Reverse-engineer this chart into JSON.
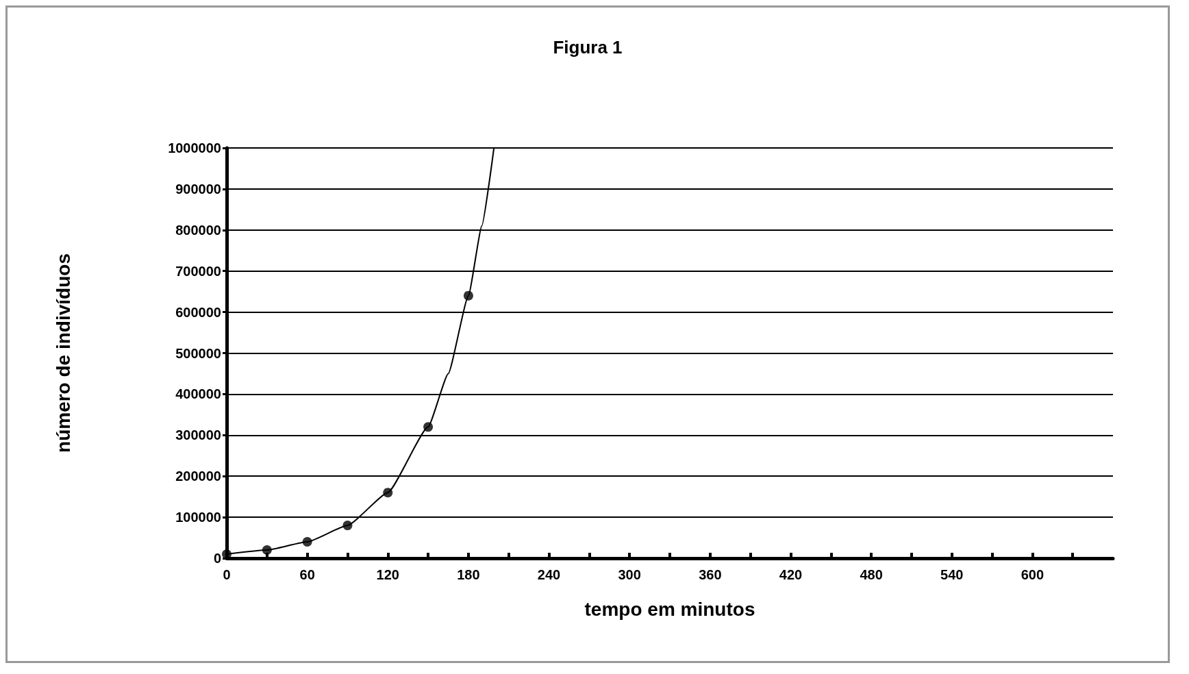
{
  "chart_data": {
    "type": "line",
    "title": "Figura 1",
    "xlabel": "tempo em minutos",
    "ylabel": "número de indivíduos",
    "series": [
      {
        "type": "scatter",
        "color": "#000000",
        "marker": "circle",
        "x": [
          0,
          30,
          60,
          90,
          120,
          150,
          180
        ],
        "values": [
          10000,
          20000,
          40000,
          80000,
          160000,
          320000,
          640000
        ]
      },
      {
        "color": "#000000",
        "marker": "none",
        "line_style": "solid",
        "x": [
          0,
          30,
          60,
          90,
          120,
          150,
          165,
          180,
          190,
          199
        ],
        "values": [
          10000,
          20000,
          40000,
          80000,
          160000,
          320000,
          450000,
          640000,
          810000,
          1000000
        ]
      }
    ],
    "xlim": [
      0,
      660
    ],
    "xticks": [
      0,
      {
        "value": 30,
        "label": null
      },
      60,
      {
        "value": 90,
        "label": null
      },
      120,
      {
        "value": 150,
        "label": null
      },
      180,
      {
        "value": 210,
        "label": null
      },
      240,
      {
        "value": 270,
        "label": null
      },
      300,
      {
        "value": 330,
        "label": null
      },
      360,
      {
        "value": 390,
        "label": null
      },
      420,
      {
        "value": 450,
        "label": null
      },
      480,
      {
        "value": 510,
        "label": null
      },
      540,
      {
        "value": 570,
        "label": null
      },
      600,
      {
        "value": 630,
        "label": null
      }
    ],
    "ylim": [
      0,
      1000000
    ],
    "yticks": [
      0,
      100000,
      200000,
      300000,
      400000,
      500000,
      600000,
      700000,
      800000,
      900000,
      1000000
    ],
    "grid": "y"
  }
}
